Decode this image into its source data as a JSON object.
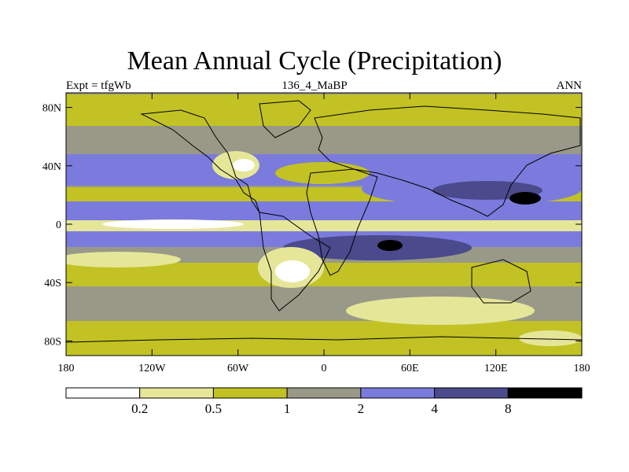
{
  "title": "Mean Annual Cycle (Precipitation)",
  "subtitle_left": "Expt = tfgWb",
  "subtitle_center": "136_4_MaBP",
  "subtitle_right": "ANN",
  "map": {
    "lon_range": [
      -180,
      180
    ],
    "lat_range": [
      -90,
      90
    ],
    "lat_ticks": [
      {
        "value": 80,
        "label": "80N"
      },
      {
        "value": 40,
        "label": "40N"
      },
      {
        "value": 0,
        "label": "0"
      },
      {
        "value": -40,
        "label": "40S"
      },
      {
        "value": -80,
        "label": "80S"
      }
    ],
    "lon_ticks": [
      {
        "value": -180,
        "label": "180"
      },
      {
        "value": -120,
        "label": "120W"
      },
      {
        "value": -60,
        "label": "60W"
      },
      {
        "value": 0,
        "label": "0"
      },
      {
        "value": 60,
        "label": "60E"
      },
      {
        "value": 120,
        "label": "120E"
      },
      {
        "value": 180,
        "label": "180"
      }
    ]
  },
  "colors": {
    "c0": "#ffffff",
    "c1": "#e6e699",
    "c2": "#c2c224",
    "c3": "#999988",
    "c4": "#7b7bdd",
    "c5": "#4a4a8c",
    "c6": "#000000"
  },
  "colorbar": {
    "bins": [
      "#ffffff",
      "#e6e699",
      "#c2c224",
      "#999988",
      "#7b7bdd",
      "#4a4a8c",
      "#000000"
    ],
    "labels": [
      "0.2",
      "0.5",
      "1",
      "2",
      "4",
      "8"
    ]
  }
}
